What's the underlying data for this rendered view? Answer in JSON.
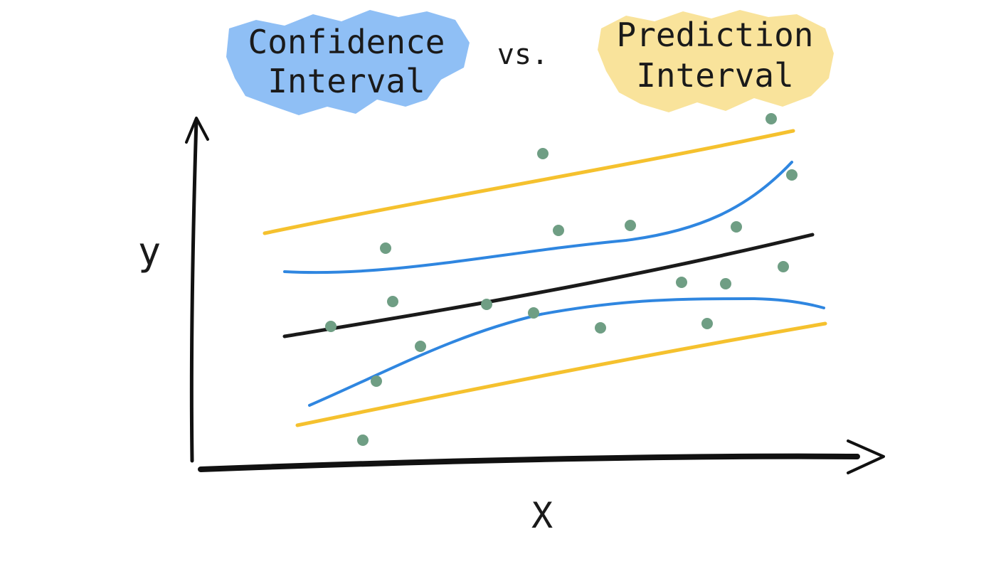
{
  "title": {
    "left": [
      "Confidence",
      "Interval"
    ],
    "middle": "vs.",
    "right": [
      "Prediction",
      "Interval"
    ]
  },
  "axes": {
    "x_label": "X",
    "y_label": "y"
  },
  "colors": {
    "confidence_highlight": "#8fbff5",
    "prediction_highlight": "#f9e39b",
    "regression_line": "#1a1a1a",
    "confidence_band": "#2f86e0",
    "prediction_band": "#f5c12e",
    "points": "#6f9e84",
    "axis": "#111111"
  }
}
